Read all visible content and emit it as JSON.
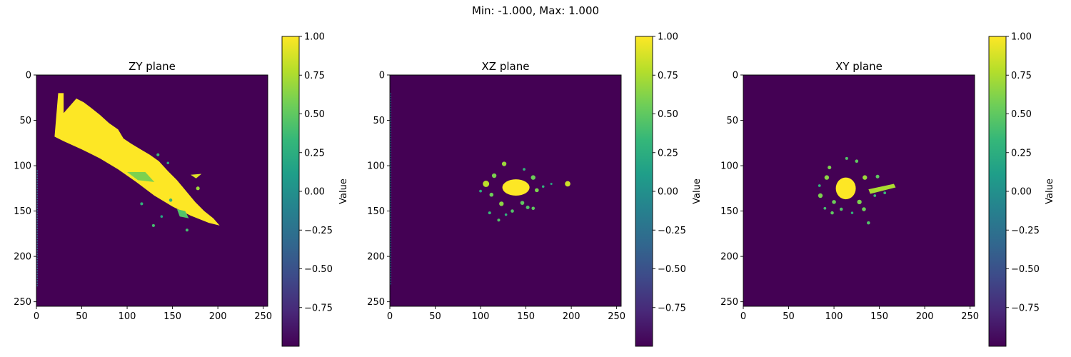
{
  "figure": {
    "suptitle": "Min: -1.000, Max: 1.000"
  },
  "colormap": {
    "name": "viridis",
    "stops": [
      "#440154",
      "#482878",
      "#3e4a89",
      "#31688e",
      "#26828e",
      "#1f9e89",
      "#35b779",
      "#6ece58",
      "#b5de2b",
      "#fde725"
    ]
  },
  "chart_data": [
    {
      "type": "heatmap",
      "title": "ZY plane",
      "xlim": [
        0,
        255
      ],
      "ylim": [
        255,
        0
      ],
      "xticks": [
        0,
        50,
        100,
        150,
        200,
        250
      ],
      "yticks": [
        0,
        50,
        100,
        150,
        200,
        250
      ],
      "colorbar": {
        "label": "Value",
        "range": [
          -1,
          1
        ],
        "ticks": [
          1.0,
          0.75,
          0.5,
          0.25,
          0.0,
          -0.25,
          -0.5,
          -0.75
        ],
        "tick_labels": [
          "1.00",
          "0.75",
          "0.50",
          "0.25",
          "0.00",
          "−0.25",
          "−0.50",
          "−0.75"
        ]
      },
      "background_value": -1.0,
      "regions": [
        {
          "shape": "polygon",
          "value": 1.0,
          "points": [
            [
              20,
              68
            ],
            [
              24,
              20
            ],
            [
              30,
              20
            ],
            [
              30,
              42
            ],
            [
              44,
              26
            ],
            [
              52,
              30
            ],
            [
              60,
              36
            ],
            [
              70,
              44
            ],
            [
              80,
              53
            ],
            [
              90,
              60
            ],
            [
              96,
              70
            ],
            [
              105,
              76
            ],
            [
              115,
              82
            ],
            [
              125,
              88
            ],
            [
              135,
              95
            ],
            [
              145,
              106
            ],
            [
              155,
              116
            ],
            [
              165,
              128
            ],
            [
              175,
              140
            ],
            [
              185,
              150
            ],
            [
              195,
              158
            ],
            [
              202,
              166
            ],
            [
              190,
              163
            ],
            [
              170,
              155
            ],
            [
              150,
              145
            ],
            [
              130,
              133
            ],
            [
              110,
              118
            ],
            [
              90,
              104
            ],
            [
              70,
              92
            ],
            [
              50,
              82
            ],
            [
              30,
              73
            ]
          ]
        },
        {
          "shape": "polygon",
          "value": 0.9,
          "points": [
            [
              170,
              110
            ],
            [
              182,
              109
            ],
            [
              176,
              114
            ]
          ]
        },
        {
          "shape": "polygon",
          "value": 0.6,
          "points": [
            [
              100,
              107
            ],
            [
              120,
              107
            ],
            [
              130,
              118
            ],
            [
              112,
              116
            ]
          ]
        },
        {
          "shape": "polygon",
          "value": 0.45,
          "points": [
            [
              155,
              148
            ],
            [
              164,
              150
            ],
            [
              168,
              158
            ],
            [
              158,
              156
            ]
          ]
        },
        {
          "shape": "dot",
          "value": 0.7,
          "x": 178,
          "y": 125,
          "r": 2
        },
        {
          "shape": "dot",
          "value": 0.4,
          "x": 129,
          "y": 166,
          "r": 1.6
        },
        {
          "shape": "dot",
          "value": 0.3,
          "x": 148,
          "y": 138,
          "r": 1.8
        },
        {
          "shape": "dot",
          "value": 0.4,
          "x": 166,
          "y": 171,
          "r": 1.6
        },
        {
          "shape": "dot",
          "value": 0.35,
          "x": 134,
          "y": 88,
          "r": 1.6
        },
        {
          "shape": "dot",
          "value": 0.25,
          "x": 145,
          "y": 97,
          "r": 1.4
        },
        {
          "shape": "dot",
          "value": 0.3,
          "x": 116,
          "y": 142,
          "r": 1.6
        },
        {
          "shape": "dot",
          "value": 0.2,
          "x": 138,
          "y": 156,
          "r": 1.4
        },
        {
          "shape": "line",
          "value": -0.35,
          "x1": 1,
          "y1": 105,
          "x2": 1,
          "y2": 233,
          "w": 1.5
        }
      ]
    },
    {
      "type": "heatmap",
      "title": "XZ plane",
      "xlim": [
        0,
        255
      ],
      "ylim": [
        255,
        0
      ],
      "xticks": [
        0,
        50,
        100,
        150,
        200,
        250
      ],
      "yticks": [
        0,
        50,
        100,
        150,
        200,
        250
      ],
      "colorbar": {
        "label": "Value",
        "range": [
          -1,
          1
        ],
        "ticks": [
          1.0,
          0.75,
          0.5,
          0.25,
          0.0,
          -0.25,
          -0.5,
          -0.75
        ],
        "tick_labels": [
          "1.00",
          "0.75",
          "0.50",
          "0.25",
          "0.00",
          "−0.25",
          "−0.50",
          "−0.75"
        ]
      },
      "background_value": -1.0,
      "regions": [
        {
          "shape": "ellipse",
          "value": 1.0,
          "x": 139,
          "y": 124,
          "rx": 15,
          "ry": 9
        },
        {
          "shape": "dot",
          "value": 0.85,
          "x": 196,
          "y": 120,
          "r": 3
        },
        {
          "shape": "dot",
          "value": 0.8,
          "x": 106,
          "y": 120,
          "r": 3.5
        },
        {
          "shape": "dot",
          "value": 0.6,
          "x": 115,
          "y": 111,
          "r": 2.5
        },
        {
          "shape": "dot",
          "value": 0.7,
          "x": 126,
          "y": 98,
          "r": 2.5
        },
        {
          "shape": "dot",
          "value": 0.55,
          "x": 158,
          "y": 113,
          "r": 2.5
        },
        {
          "shape": "dot",
          "value": 0.6,
          "x": 162,
          "y": 127,
          "r": 2.2
        },
        {
          "shape": "dot",
          "value": 0.55,
          "x": 112,
          "y": 132,
          "r": 2.2
        },
        {
          "shape": "dot",
          "value": 0.65,
          "x": 123,
          "y": 142,
          "r": 2.5
        },
        {
          "shape": "dot",
          "value": 0.5,
          "x": 146,
          "y": 141,
          "r": 2.2
        },
        {
          "shape": "dot",
          "value": 0.45,
          "x": 152,
          "y": 146,
          "r": 2
        },
        {
          "shape": "dot",
          "value": 0.5,
          "x": 158,
          "y": 147,
          "r": 1.8
        },
        {
          "shape": "dot",
          "value": 0.45,
          "x": 135,
          "y": 150,
          "r": 1.8
        },
        {
          "shape": "dot",
          "value": 0.45,
          "x": 120,
          "y": 160,
          "r": 1.6
        },
        {
          "shape": "dot",
          "value": 0.35,
          "x": 110,
          "y": 152,
          "r": 1.6
        },
        {
          "shape": "dot",
          "value": 0.3,
          "x": 128,
          "y": 154,
          "r": 1.4
        },
        {
          "shape": "dot",
          "value": 0.3,
          "x": 169,
          "y": 123,
          "r": 1.4
        },
        {
          "shape": "dot",
          "value": 0.25,
          "x": 100,
          "y": 128,
          "r": 1.5
        },
        {
          "shape": "dot",
          "value": 0.3,
          "x": 148,
          "y": 104,
          "r": 1.5
        },
        {
          "shape": "dot",
          "value": 0.2,
          "x": 178,
          "y": 120,
          "r": 1.2
        },
        {
          "shape": "line",
          "value": -0.35,
          "x1": 1,
          "y1": 20,
          "x2": 1,
          "y2": 232,
          "w": 1.5
        }
      ]
    },
    {
      "type": "heatmap",
      "title": "XY plane",
      "xlim": [
        0,
        255
      ],
      "ylim": [
        255,
        0
      ],
      "xticks": [
        0,
        50,
        100,
        150,
        200,
        250
      ],
      "yticks": [
        0,
        50,
        100,
        150,
        200,
        250
      ],
      "colorbar": {
        "label": "Value",
        "range": [
          -1,
          1
        ],
        "ticks": [
          1.0,
          0.75,
          0.5,
          0.25,
          0.0,
          -0.25,
          -0.5,
          -0.75
        ],
        "tick_labels": [
          "1.00",
          "0.75",
          "0.50",
          "0.25",
          "0.00",
          "−0.25",
          "−0.50",
          "−0.75"
        ]
      },
      "background_value": -1.0,
      "regions": [
        {
          "shape": "ellipse",
          "value": 1.0,
          "x": 113,
          "y": 125,
          "rx": 11,
          "ry": 12
        },
        {
          "shape": "polygon",
          "value": 0.75,
          "points": [
            [
              138,
              126
            ],
            [
              166,
              120
            ],
            [
              168,
              124
            ],
            [
              140,
              131
            ]
          ]
        },
        {
          "shape": "dot",
          "value": 0.7,
          "x": 134,
          "y": 113,
          "r": 2.5
        },
        {
          "shape": "dot",
          "value": 0.65,
          "x": 92,
          "y": 113,
          "r": 2.5
        },
        {
          "shape": "dot",
          "value": 0.6,
          "x": 95,
          "y": 102,
          "r": 2
        },
        {
          "shape": "dot",
          "value": 0.6,
          "x": 85,
          "y": 133,
          "r": 2.5
        },
        {
          "shape": "dot",
          "value": 0.55,
          "x": 100,
          "y": 140,
          "r": 2.2
        },
        {
          "shape": "dot",
          "value": 0.6,
          "x": 128,
          "y": 140,
          "r": 2.5
        },
        {
          "shape": "dot",
          "value": 0.5,
          "x": 148,
          "y": 112,
          "r": 2
        },
        {
          "shape": "dot",
          "value": 0.55,
          "x": 133,
          "y": 148,
          "r": 2.2
        },
        {
          "shape": "dot",
          "value": 0.45,
          "x": 108,
          "y": 148,
          "r": 1.8
        },
        {
          "shape": "dot",
          "value": 0.5,
          "x": 125,
          "y": 95,
          "r": 1.8
        },
        {
          "shape": "dot",
          "value": 0.45,
          "x": 114,
          "y": 92,
          "r": 1.6
        },
        {
          "shape": "dot",
          "value": 0.5,
          "x": 98,
          "y": 152,
          "r": 1.8
        },
        {
          "shape": "dot",
          "value": 0.4,
          "x": 90,
          "y": 147,
          "r": 1.5
        },
        {
          "shape": "dot",
          "value": 0.45,
          "x": 138,
          "y": 163,
          "r": 1.8
        },
        {
          "shape": "dot",
          "value": 0.35,
          "x": 156,
          "y": 130,
          "r": 1.5
        },
        {
          "shape": "dot",
          "value": 0.35,
          "x": 145,
          "y": 133,
          "r": 1.5
        },
        {
          "shape": "dot",
          "value": 0.3,
          "x": 84,
          "y": 122,
          "r": 1.5
        },
        {
          "shape": "dot",
          "value": 0.3,
          "x": 120,
          "y": 152,
          "r": 1.4
        }
      ]
    }
  ]
}
